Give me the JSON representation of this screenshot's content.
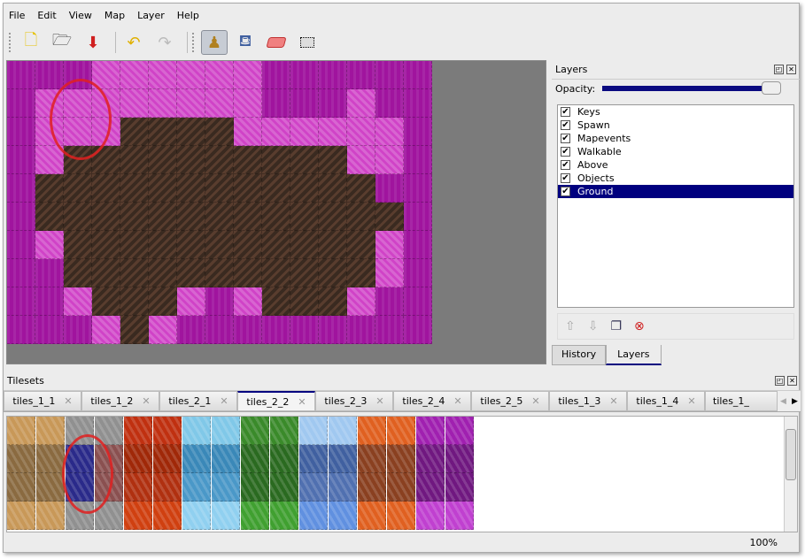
{
  "menu": [
    "File",
    "Edit",
    "View",
    "Map",
    "Layer",
    "Help"
  ],
  "toolbar": {
    "icons": [
      "new-file-icon",
      "open-icon",
      "save-icon",
      "undo-icon",
      "redo-icon",
      "stamp-brush-icon",
      "bucket-fill-icon",
      "eraser-icon",
      "rect-select-icon"
    ],
    "active": "stamp-brush-icon"
  },
  "layers_panel": {
    "title": "Layers",
    "opacity_label": "Opacity:",
    "opacity": 1.0,
    "layers": [
      {
        "name": "Keys",
        "visible": true
      },
      {
        "name": "Spawn",
        "visible": true
      },
      {
        "name": "Mapevents",
        "visible": true
      },
      {
        "name": "Walkable",
        "visible": true
      },
      {
        "name": "Above",
        "visible": true
      },
      {
        "name": "Objects",
        "visible": true
      },
      {
        "name": "Ground",
        "visible": true,
        "selected": true
      }
    ],
    "tabs": [
      "History",
      "Layers"
    ],
    "active_tab": "Layers"
  },
  "tilesets_panel": {
    "title": "Tilesets",
    "tabs": [
      "tiles_1_1",
      "tiles_1_2",
      "tiles_2_1",
      "tiles_2_2",
      "tiles_2_3",
      "tiles_2_4",
      "tiles_2_5",
      "tiles_1_3",
      "tiles_1_4",
      "tiles_1_"
    ],
    "active_tab": "tiles_2_2"
  },
  "colors": {
    "selection": "#00007f",
    "annotation": "#e02020"
  },
  "status": {
    "zoom": "100%"
  }
}
